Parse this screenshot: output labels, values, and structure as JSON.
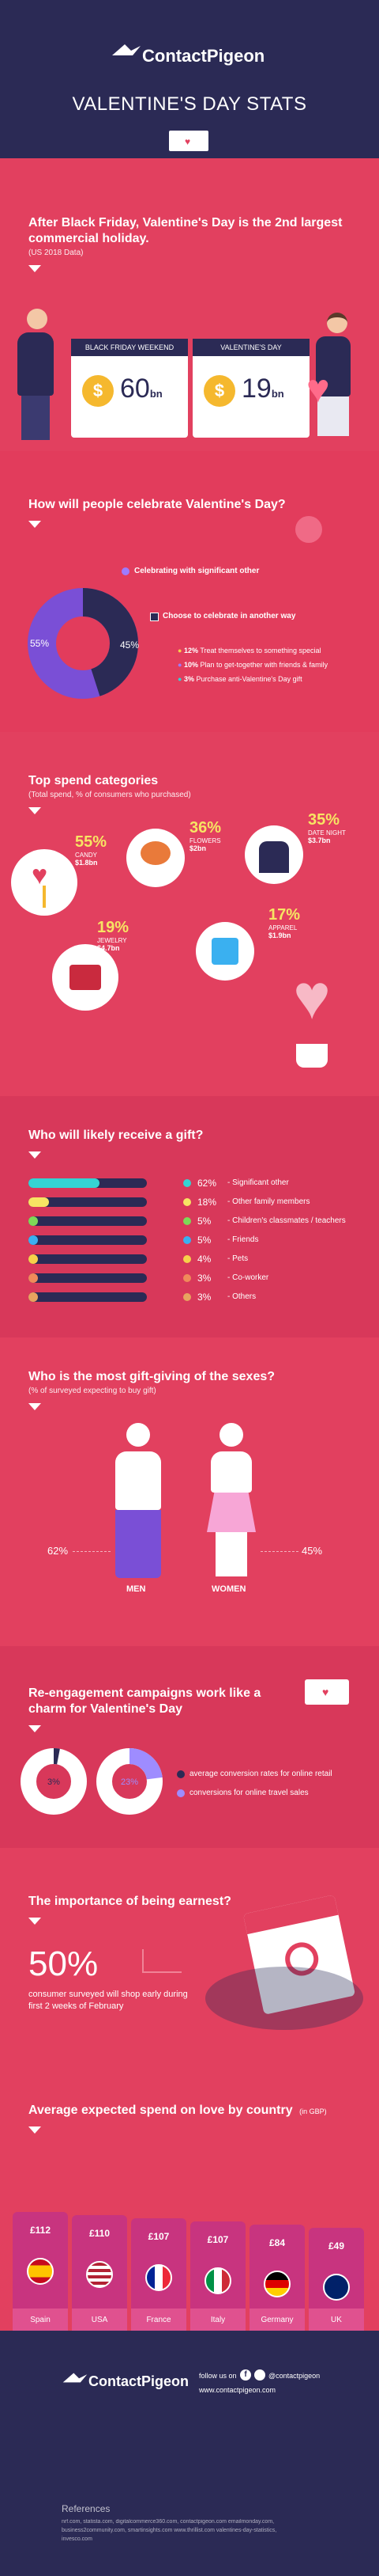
{
  "header": {
    "brand": "ContactPigeon",
    "title": "VALENTINE'S DAY STATS"
  },
  "s1": {
    "heading": "After Black Friday, Valentine's Day is the 2nd largest commercial holiday.",
    "sub": "(US 2018 Data)",
    "cards": [
      {
        "label": "BLACK FRIDAY WEEKEND",
        "value": "60",
        "unit": "bn"
      },
      {
        "label": "VALENTINE'S DAY",
        "value": "19",
        "unit": "bn"
      }
    ]
  },
  "s2": {
    "heading": "How will people celebrate Valentine's Day?",
    "legend1": "Celebrating with significant other",
    "legend2": "Choose to celebrate in another way",
    "pct_left": "55%",
    "pct_right": "45%",
    "donut": {
      "significant": 55,
      "other": 45
    },
    "items": [
      {
        "b": "12%",
        "t": "Treat themselves to something special"
      },
      {
        "b": "10%",
        "t": "Plan to get-together with friends & family"
      },
      {
        "b": "3%",
        "t": "Purchase anti-Valentine's Day gift"
      }
    ]
  },
  "s3": {
    "heading": "Top spend categories",
    "sub": "(Total spend, % of consumers who purchased)",
    "cats": [
      {
        "pct": "55%",
        "name": "CANDY",
        "amt": "$1.8bn"
      },
      {
        "pct": "36%",
        "name": "FLOWERS",
        "amt": "$2bn"
      },
      {
        "pct": "35%",
        "name": "DATE NIGHT",
        "amt": "$3.7bn"
      },
      {
        "pct": "19%",
        "name": "JEWELRY",
        "amt": "$4.7bn"
      },
      {
        "pct": "17%",
        "name": "APPAREL",
        "amt": "$1.9bn"
      }
    ]
  },
  "s4": {
    "heading": "Who will likely receive a gift?",
    "rows": [
      {
        "pct": "62%",
        "label": "- Significant other",
        "color": "#34d3d3",
        "fill": 0.62
      },
      {
        "pct": "18%",
        "label": "- Other family members",
        "color": "#f7e463",
        "fill": 0.18
      },
      {
        "pct": "5%",
        "label": "- Children's classmates / teachers",
        "color": "#7ed957",
        "fill": 0.05
      },
      {
        "pct": "5%",
        "label": "- Friends",
        "color": "#3ab0f0",
        "fill": 0.05
      },
      {
        "pct": "4%",
        "label": "- Pets",
        "color": "#f7d14a",
        "fill": 0.04
      },
      {
        "pct": "3%",
        "label": "- Co-worker",
        "color": "#f08a5a",
        "fill": 0.03
      },
      {
        "pct": "3%",
        "label": "- Others",
        "color": "#e8a35f",
        "fill": 0.03
      }
    ]
  },
  "s5": {
    "heading": "Who is the most gift-giving of the sexes?",
    "sub": "(% of surveyed expecting to buy gift)",
    "men_pct": "62%",
    "men": "MEN",
    "women_pct": "45%",
    "women": "WOMEN"
  },
  "s6": {
    "heading": "Re-engagement campaigns work like a charm for Valentine's Day",
    "donut_a": "3%",
    "donut_b": "23%",
    "legend1": "average conversion rates for online retail",
    "legend2": "conversions for online travel sales"
  },
  "s7": {
    "heading": "The importance of being earnest?",
    "big": "50%",
    "text": "consumer surveyed will shop early during first 2 weeks of February"
  },
  "s8": {
    "heading": "Average expected spend on love by country",
    "unit": "(in GBP)",
    "countries": [
      {
        "amt": "£112",
        "name": "Spain"
      },
      {
        "amt": "£110",
        "name": "USA"
      },
      {
        "amt": "£107",
        "name": "France"
      },
      {
        "amt": "£107",
        "name": "Italy"
      },
      {
        "amt": "£84",
        "name": "Germany"
      },
      {
        "amt": "£49",
        "name": "UK"
      }
    ]
  },
  "footer": {
    "brand": "ContactPigeon",
    "follow": "follow us on",
    "handle": "@contactpigeon",
    "url": "www.contactpigeon.com",
    "refs_title": "References",
    "refs": "nrf.com, statista.com, digitalcommerce360.com, contactpigeon.com emailmonday.com, business2community.com, smartinsights.com www.thrillist.com valentines-day-statistics, invesco.com"
  },
  "colors": {
    "navy": "#2b2a55",
    "pink": "#e2405f",
    "darkpink": "#c9304f",
    "purple": "#7a4fd6",
    "lavender": "#9e8cff"
  }
}
